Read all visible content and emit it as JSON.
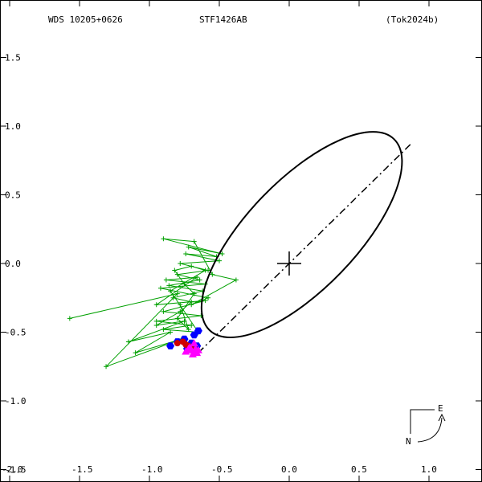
{
  "header": {
    "wds_id": "WDS 10205+0626",
    "star_name": "STF1426AB",
    "reference": "(Tok2024b)"
  },
  "chart_data": {
    "type": "scatter",
    "title": "STF1426AB",
    "xlim": [
      -2.0,
      1.35
    ],
    "ylim": [
      -1.5,
      1.85
    ],
    "x_ticks": [
      {
        "value": -2.0,
        "label": "-2.0"
      },
      {
        "value": -1.5,
        "label": "-1.5"
      },
      {
        "value": -1.0,
        "label": "-1.0"
      },
      {
        "value": -0.5,
        "label": "-0.5"
      },
      {
        "value": 0.0,
        "label": "0.0"
      },
      {
        "value": 0.5,
        "label": "0.5"
      },
      {
        "value": 1.0,
        "label": "1.0"
      }
    ],
    "y_ticks": [
      {
        "value": 1.5,
        "label": "1.5"
      },
      {
        "value": 1.0,
        "label": "1.0"
      },
      {
        "value": 0.5,
        "label": "0.5"
      },
      {
        "value": 0.0,
        "label": "0.0"
      },
      {
        "value": -0.5,
        "label": "-0.5"
      },
      {
        "value": -1.0,
        "label": "-1.0"
      },
      {
        "value": -1.5,
        "label": "-1.5"
      }
    ],
    "orbit": {
      "center": [
        0.09,
        0.21
      ],
      "semi_major": 0.95,
      "semi_minor": 0.39,
      "angle_deg": 46,
      "line_of_apsides": [
        [
          -0.65,
          -0.65
        ],
        [
          0.88,
          0.88
        ]
      ],
      "color": "#000000"
    },
    "primary": [
      0.0,
      0.0
    ],
    "green_points": [
      [
        -1.57,
        -0.4
      ],
      [
        -0.8,
        -0.22
      ],
      [
        -1.31,
        -0.75
      ],
      [
        -0.77,
        -0.55
      ],
      [
        -1.1,
        -0.65
      ],
      [
        -0.85,
        -0.5
      ],
      [
        -1.15,
        -0.57
      ],
      [
        -0.75,
        -0.42
      ],
      [
        -0.95,
        -0.45
      ],
      [
        -0.78,
        -0.35
      ],
      [
        -0.7,
        -0.28
      ],
      [
        -0.83,
        -0.25
      ],
      [
        -0.62,
        -0.2
      ],
      [
        -0.86,
        -0.16
      ],
      [
        -0.64,
        -0.12
      ],
      [
        -0.8,
        -0.08
      ],
      [
        -0.58,
        -0.05
      ],
      [
        -0.78,
        0.0
      ],
      [
        -0.5,
        0.02
      ],
      [
        -0.74,
        0.07
      ],
      [
        -0.52,
        0.05
      ],
      [
        -0.72,
        0.12
      ],
      [
        -0.48,
        0.07
      ],
      [
        -0.9,
        0.18
      ],
      [
        -0.68,
        0.16
      ],
      [
        -0.55,
        -0.08
      ],
      [
        -0.38,
        -0.12
      ],
      [
        -0.7,
        -0.3
      ],
      [
        -0.58,
        -0.25
      ],
      [
        -0.92,
        -0.18
      ],
      [
        -0.6,
        -0.15
      ],
      [
        -0.88,
        -0.12
      ],
      [
        -0.66,
        -0.1
      ],
      [
        -0.95,
        -0.3
      ],
      [
        -0.6,
        -0.27
      ],
      [
        -0.9,
        -0.35
      ],
      [
        -0.63,
        -0.38
      ],
      [
        -0.95,
        -0.42
      ],
      [
        -0.7,
        -0.45
      ],
      [
        -0.9,
        -0.48
      ],
      [
        -0.65,
        -0.5
      ],
      [
        -0.85,
        -0.2
      ],
      [
        -0.6,
        -0.05
      ],
      [
        -0.7,
        -0.02
      ],
      [
        -0.82,
        -0.05
      ],
      [
        -0.75,
        -0.15
      ],
      [
        -0.68,
        -0.22
      ],
      [
        -0.8,
        -0.4
      ],
      [
        -0.72,
        -0.48
      ],
      [
        -0.78,
        -0.3
      ]
    ],
    "blue_points": [
      [
        -0.65,
        -0.49
      ],
      [
        -0.68,
        -0.52
      ],
      [
        -0.75,
        -0.55
      ],
      [
        -0.8,
        -0.57
      ],
      [
        -0.85,
        -0.6
      ],
      [
        -0.7,
        -0.58
      ],
      [
        -0.66,
        -0.6
      ],
      [
        -0.73,
        -0.62
      ]
    ],
    "red_points": [
      [
        -0.76,
        -0.57
      ],
      [
        -0.8,
        -0.58
      ],
      [
        -0.74,
        -0.59
      ],
      [
        -0.72,
        -0.6
      ],
      [
        -0.7,
        -0.62
      ]
    ],
    "magenta_points": [
      [
        -0.72,
        -0.62
      ],
      [
        -0.7,
        -0.63
      ],
      [
        -0.68,
        -0.64
      ],
      [
        -0.66,
        -0.65
      ],
      [
        -0.74,
        -0.64
      ],
      [
        -0.69,
        -0.66
      ],
      [
        -0.71,
        -0.61
      ],
      [
        -0.67,
        -0.62
      ],
      [
        -0.68,
        -0.58
      ],
      [
        -0.65,
        -0.63
      ]
    ],
    "colors": {
      "green": "#00a000",
      "blue": "#0000ff",
      "red": "#d00000",
      "magenta": "#ff00ff",
      "axes": "#000000"
    },
    "compass": {
      "north": "N",
      "east": "E"
    }
  }
}
